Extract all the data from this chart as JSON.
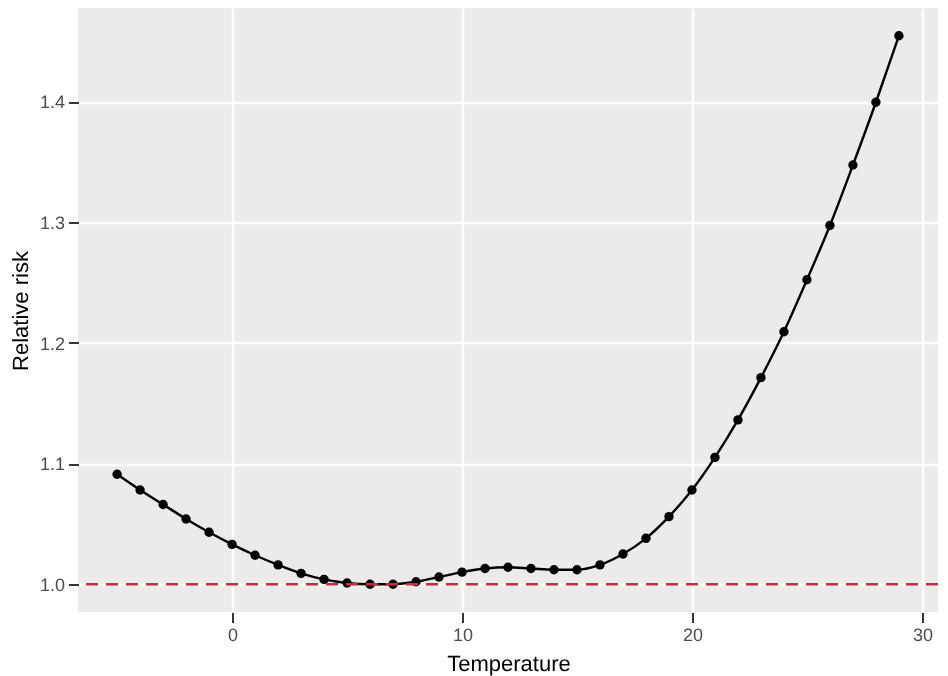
{
  "chart_data": {
    "type": "line",
    "xlabel": "Temperature",
    "ylabel": "Relative risk",
    "x": [
      -5,
      -4,
      -3,
      -2,
      -1,
      0,
      1,
      2,
      3,
      4,
      5,
      6,
      7,
      8,
      9,
      10,
      11,
      12,
      13,
      14,
      15,
      16,
      17,
      18,
      19,
      20,
      21,
      22,
      23,
      24,
      25,
      26,
      27,
      28,
      29
    ],
    "series": [
      {
        "color": "#000000",
        "values": [
          1.091,
          1.078,
          1.066,
          1.054,
          1.043,
          1.033,
          1.024,
          1.016,
          1.009,
          1.004,
          1.001,
          1.0,
          1.0,
          1.002,
          1.006,
          1.01,
          1.013,
          1.014,
          1.013,
          1.012,
          1.012,
          1.016,
          1.025,
          1.038,
          1.056,
          1.078,
          1.105,
          1.136,
          1.171,
          1.209,
          1.252,
          1.297,
          1.347,
          1.399,
          1.454
        ]
      }
    ],
    "xlim": [
      -6.7,
      30.7
    ],
    "xticks": [
      0,
      10,
      20,
      30
    ],
    "ylim": [
      0.977,
      1.477
    ],
    "yticks": [
      {
        "value": 1,
        "label": "1.0"
      },
      1.1,
      1.2,
      1.3,
      1.4
    ],
    "grid": true,
    "marker": "circle",
    "line_style": "solid",
    "ref_lines": [
      {
        "axis": "y",
        "value": 1,
        "color": "#e8202e",
        "line_style": "dashed"
      }
    ]
  }
}
